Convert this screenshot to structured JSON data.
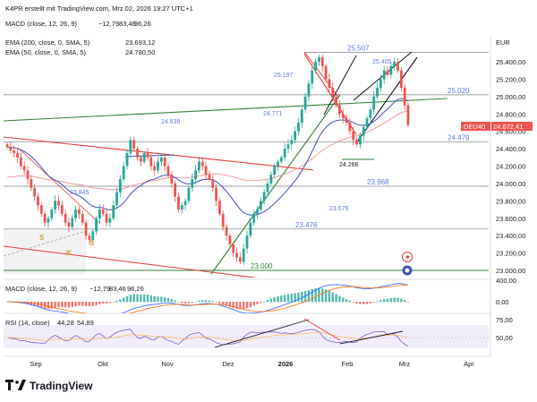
{
  "header": {
    "author": "K4PR erstellt mit TradingView.com, Mrz 02, 2026 19:27 UTC+1",
    "currency": "EUR"
  },
  "indicators": {
    "macd_top": {
      "label": "MACD (close, 12, 26, 9)",
      "v1": "−12,79",
      "v2": "83,46",
      "v3": "96,26"
    },
    "ema200": {
      "label": "EMA (200, close, 0, SMA, 5)",
      "value": "23.693,12"
    },
    "ema50": {
      "label": "EMA (50, close, 0, SMA, 5)",
      "value": "24.780,50"
    },
    "macd_pane": {
      "label": "MACD (close, 12, 26, 9)",
      "v1": "−12,79",
      "v2": "83,46",
      "v3": "96,26"
    },
    "rsi_pane": {
      "label": "RSI (14, close)",
      "v1": "44,28",
      "v2": "54,89"
    }
  },
  "price_tag": {
    "symbol": "DEU40",
    "value": "24.672,41"
  },
  "colors": {
    "up": "#26a69a",
    "down": "#ef5350",
    "green_line": "#2e7d32",
    "red_line": "#e53935",
    "ema50": "#3f51b5",
    "ema200": "#ef9a9a",
    "level_text": "#5b7bd5",
    "rsi_line": "#7e57c2"
  },
  "chart_data": {
    "type": "candlestick",
    "x_ticks": [
      "Sep",
      "Okt",
      "Nov",
      "Dez",
      "2026",
      "Feb",
      "Mrz",
      "Apr"
    ],
    "y_ticks": [
      "25.400,00",
      "25.200,00",
      "25.000,00",
      "24.800,00",
      "24.600,00",
      "24.400,00",
      "24.200,00",
      "24.000,00",
      "23.800,00",
      "23.600,00",
      "23.400,00",
      "23.200,00",
      "23.000,00",
      "400,00"
    ],
    "y_tick_values": [
      25400,
      25200,
      25000,
      24800,
      24600,
      24400,
      24200,
      24000,
      23800,
      23600,
      23400,
      23200,
      23000
    ],
    "macd_ticks": [
      "0,00"
    ],
    "rsi_ticks": [
      "75,00",
      "50,00"
    ],
    "levels": [
      {
        "value": 25507,
        "label": "25.507"
      },
      {
        "value": 25020,
        "label": "25.020"
      },
      {
        "value": 24479,
        "label": "24.479"
      },
      {
        "value": 23968,
        "label": "23.968"
      },
      {
        "value": 23476,
        "label": "23.476"
      },
      {
        "value": 23000,
        "label": "23.000"
      }
    ],
    "annotations": [
      "25.405",
      "25.197",
      "24.771",
      "24.639",
      "24.266",
      "23.845",
      "23.675"
    ],
    "pattern_marks": [
      "S",
      "S",
      "K"
    ],
    "closes": [
      24420,
      24380,
      24350,
      24300,
      24200,
      24150,
      24050,
      23950,
      23850,
      23750,
      23650,
      23550,
      23600,
      23700,
      23800,
      23750,
      23650,
      23550,
      23500,
      23600,
      23700,
      23650,
      23550,
      23400,
      23350,
      23450,
      23600,
      23700,
      23650,
      23550,
      23600,
      23750,
      23900,
      24050,
      24200,
      24350,
      24500,
      24400,
      24300,
      24250,
      24350,
      24300,
      24200,
      24150,
      24250,
      24300,
      24200,
      24100,
      24000,
      23850,
      23700,
      23750,
      23800,
      23950,
      24050,
      24150,
      24250,
      24200,
      24100,
      24050,
      23950,
      23800,
      23650,
      23500,
      23400,
      23300,
      23200,
      23150,
      23100,
      23250,
      23400,
      23550,
      23650,
      23700,
      23800,
      23900,
      24000,
      24100,
      24200,
      24250,
      24300,
      24400,
      24450,
      24500,
      24600,
      24700,
      24850,
      25000,
      25150,
      25300,
      25400,
      25450,
      25350,
      25200,
      25100,
      25000,
      24900,
      24800,
      24750,
      24700,
      24600,
      24500,
      24450,
      24550,
      24650,
      24750,
      24850,
      25000,
      25100,
      25200,
      25300,
      25250,
      25350,
      25400,
      25300,
      25100,
      24900,
      24672
    ]
  }
}
